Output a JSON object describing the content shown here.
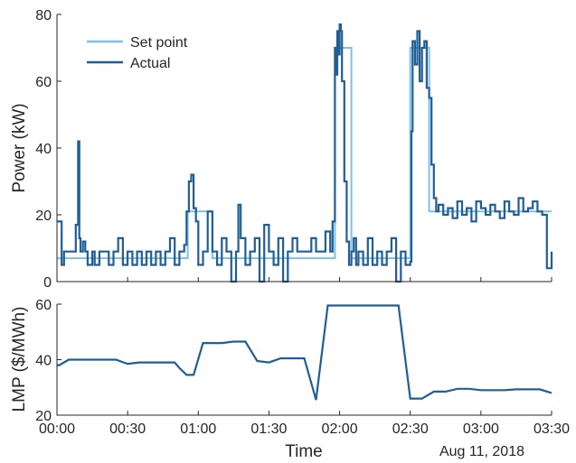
{
  "colors": {
    "set_point": "#7fbfe8",
    "actual": "#1f5f96",
    "lmp": "#1f5f96",
    "axis": "#262626"
  },
  "chart_data": [
    {
      "type": "line",
      "ylabel": "Power (kW)",
      "xlabel": "",
      "xlim_minutes": [
        0,
        210
      ],
      "ylim": [
        0,
        80
      ],
      "yticks": [
        "0",
        "20",
        "40",
        "60",
        "80"
      ],
      "legend": {
        "placement": "top-left",
        "entries": [
          "Set point",
          "Actual"
        ]
      },
      "grid": false,
      "series": [
        {
          "name": "Set point",
          "step": true,
          "x": [
            0,
            55,
            55.5,
            57,
            66,
            66.5,
            118,
            118.5,
            125,
            125.5,
            150,
            150.5,
            158,
            158.5,
            210
          ],
          "y": [
            7,
            7,
            21,
            21,
            7,
            7,
            70,
            70,
            7,
            7,
            70,
            70,
            21,
            21,
            21
          ]
        },
        {
          "name": "Actual",
          "step": true,
          "x": [
            0,
            2,
            3,
            4,
            8,
            9,
            9.5,
            10,
            11,
            12,
            13,
            15,
            16,
            18,
            20,
            22,
            24,
            26,
            28,
            30,
            32,
            34,
            36,
            38,
            40,
            42,
            44,
            46,
            48,
            50,
            52,
            54,
            55,
            56,
            57,
            58,
            59,
            60,
            62,
            64,
            66,
            68,
            70,
            72,
            74,
            76,
            77,
            78,
            80,
            82,
            84,
            86,
            88,
            90,
            92,
            94,
            96,
            98,
            100,
            102,
            104,
            106,
            108,
            110,
            112,
            114,
            116,
            117,
            118,
            118.5,
            119,
            119.5,
            120,
            120.5,
            121,
            122,
            123,
            124,
            125,
            126,
            127,
            128,
            130,
            132,
            134,
            136,
            138,
            140,
            142,
            144,
            146,
            148,
            150,
            150.5,
            151,
            152,
            153,
            154,
            155,
            156,
            157,
            158,
            159,
            160,
            161,
            162,
            164,
            166,
            168,
            170,
            172,
            174,
            176,
            178,
            180,
            182,
            184,
            186,
            188,
            190,
            192,
            194,
            196,
            198,
            200,
            202,
            204,
            206,
            208,
            210
          ],
          "y": [
            18,
            5,
            9,
            9,
            17,
            42,
            13,
            9,
            12,
            9,
            5,
            9,
            5,
            9,
            9,
            5,
            9,
            13,
            5,
            9,
            5,
            9,
            5,
            9,
            5,
            9,
            5,
            9,
            13,
            5,
            9,
            11,
            21,
            30,
            32,
            22,
            18,
            5,
            9,
            21,
            9,
            5,
            13,
            9,
            0,
            9,
            23,
            13,
            5,
            9,
            13,
            0,
            17,
            9,
            5,
            13,
            0,
            9,
            13,
            9,
            9,
            9,
            13,
            9,
            9,
            15,
            9,
            18,
            70,
            62,
            75,
            68,
            77,
            75,
            60,
            30,
            12,
            5,
            9,
            13,
            5,
            9,
            5,
            13,
            5,
            9,
            5,
            9,
            13,
            0,
            9,
            5,
            6,
            45,
            72,
            65,
            75,
            60,
            70,
            72,
            58,
            55,
            35,
            25,
            21,
            23,
            20,
            22,
            19,
            24,
            20,
            22,
            18,
            24,
            22,
            20,
            23,
            21,
            19,
            24,
            21,
            20,
            25,
            21,
            22,
            24,
            21,
            20,
            4,
            9
          ]
        }
      ]
    },
    {
      "type": "line",
      "ylabel": "LMP ($/MWh)",
      "xlabel": "Time",
      "date_label": "Aug 11, 2018",
      "xlim_minutes": [
        0,
        210
      ],
      "ylim": [
        20,
        60
      ],
      "yticks": [
        "20",
        "40",
        "60"
      ],
      "xticks": [
        "00:00",
        "00:30",
        "01:00",
        "01:30",
        "02:00",
        "02:30",
        "03:00",
        "03:30"
      ],
      "grid": false,
      "series": [
        {
          "x": [
            0,
            1,
            5,
            10,
            15,
            20,
            25,
            30,
            35,
            40,
            45,
            50,
            52,
            55,
            58,
            62,
            66,
            70,
            75,
            80,
            85,
            90,
            95,
            100,
            105,
            110,
            115,
            120,
            125,
            130,
            135,
            140,
            145,
            150,
            155,
            160,
            165,
            170,
            175,
            180,
            185,
            190,
            195,
            200,
            205,
            210
          ],
          "y": [
            38,
            38,
            40,
            40,
            40,
            40,
            40,
            38.5,
            39,
            39,
            39,
            39,
            37,
            34.5,
            34.5,
            46,
            46,
            46,
            46.5,
            46.5,
            39.5,
            39,
            40.5,
            40.5,
            40.5,
            25.5,
            59.5,
            59.5,
            59.5,
            59.5,
            59.5,
            59.5,
            59.5,
            26,
            26,
            28.5,
            28.5,
            29.5,
            29.5,
            29,
            29,
            29,
            29.3,
            29.3,
            29.3,
            28
          ]
        }
      ]
    }
  ]
}
